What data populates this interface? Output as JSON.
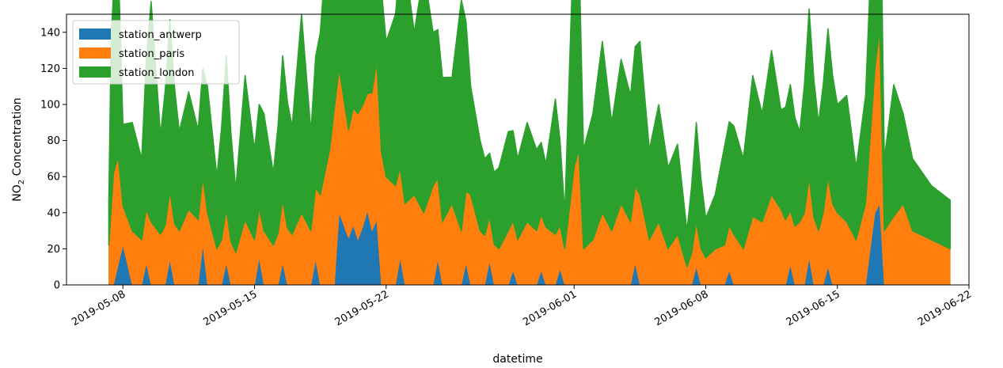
{
  "chart_data": {
    "type": "area",
    "stacked": true,
    "title": "",
    "xlabel": "datetime",
    "ylabel": "NO₂ Concentration",
    "ylabel_main": "NO",
    "ylabel_sub": "2",
    "ylabel_rest": " Concentration",
    "xlim": [
      "2019-05-05",
      "2019-06-22"
    ],
    "ylim": [
      0,
      150
    ],
    "y_ticks": [
      0,
      20,
      40,
      60,
      80,
      100,
      120,
      140
    ],
    "x_ticks": [
      "2019-05-08",
      "2019-05-15",
      "2019-05-22",
      "2019-06-01",
      "2019-06-08",
      "2019-06-15",
      "2019-06-22"
    ],
    "grid": false,
    "legend_position": "upper-left",
    "series": [
      {
        "name": "station_antwerp",
        "color": "#1f77b4",
        "points": [
          [
            "2019-05-07 06:00",
            0
          ],
          [
            "2019-05-07 12:00",
            0
          ],
          [
            "2019-05-08",
            22
          ],
          [
            "2019-05-08 12:00",
            0
          ],
          [
            "2019-05-09",
            0
          ],
          [
            "2019-05-09 06:00",
            12
          ],
          [
            "2019-05-09 12:00",
            0
          ],
          [
            "2019-05-10 06:00",
            0
          ],
          [
            "2019-05-10 12:00",
            14
          ],
          [
            "2019-05-10 18:00",
            0
          ],
          [
            "2019-05-12",
            0
          ],
          [
            "2019-05-12 06:00",
            22
          ],
          [
            "2019-05-12 12:00",
            0
          ],
          [
            "2019-05-13 06:00",
            0
          ],
          [
            "2019-05-13 12:00",
            12
          ],
          [
            "2019-05-13 18:00",
            0
          ],
          [
            "2019-05-15",
            0
          ],
          [
            "2019-05-15 06:00",
            15
          ],
          [
            "2019-05-15 12:00",
            0
          ],
          [
            "2019-05-16 06:00",
            0
          ],
          [
            "2019-05-16 12:00",
            12
          ],
          [
            "2019-05-16 18:00",
            0
          ],
          [
            "2019-05-18",
            0
          ],
          [
            "2019-05-18 06:00",
            14
          ],
          [
            "2019-05-18 12:00",
            0
          ],
          [
            "2019-05-19 06:00",
            0
          ],
          [
            "2019-05-19 12:00",
            40
          ],
          [
            "2019-05-20",
            26
          ],
          [
            "2019-05-20 06:00",
            33
          ],
          [
            "2019-05-20 12:00",
            25
          ],
          [
            "2019-05-20 18:00",
            32
          ],
          [
            "2019-05-21",
            41
          ],
          [
            "2019-05-21 06:00",
            30
          ],
          [
            "2019-05-21 12:00",
            36
          ],
          [
            "2019-05-21 18:00",
            0
          ],
          [
            "2019-05-22 12:00",
            0
          ],
          [
            "2019-05-22 18:00",
            15
          ],
          [
            "2019-05-23",
            0
          ],
          [
            "2019-05-24 12:00",
            0
          ],
          [
            "2019-05-24 18:00",
            14
          ],
          [
            "2019-05-25",
            0
          ],
          [
            "2019-05-26",
            0
          ],
          [
            "2019-05-26 06:00",
            12
          ],
          [
            "2019-05-26 12:00",
            0
          ],
          [
            "2019-05-27 06:00",
            0
          ],
          [
            "2019-05-27 12:00",
            13
          ],
          [
            "2019-05-27 18:00",
            0
          ],
          [
            "2019-05-28 12:00",
            0
          ],
          [
            "2019-05-28 18:00",
            8
          ],
          [
            "2019-05-29",
            0
          ],
          [
            "2019-05-30",
            0
          ],
          [
            "2019-05-30 06:00",
            8
          ],
          [
            "2019-05-30 12:00",
            0
          ],
          [
            "2019-05-31",
            0
          ],
          [
            "2019-05-31 06:00",
            9
          ],
          [
            "2019-05-31 12:00",
            0
          ],
          [
            "2019-06-04",
            0
          ],
          [
            "2019-06-04 06:00",
            12
          ],
          [
            "2019-06-04 12:00",
            0
          ],
          [
            "2019-06-07 06:00",
            0
          ],
          [
            "2019-06-07 12:00",
            10
          ],
          [
            "2019-06-07 18:00",
            0
          ],
          [
            "2019-06-09",
            0
          ],
          [
            "2019-06-09 06:00",
            8
          ],
          [
            "2019-06-09 12:00",
            0
          ],
          [
            "2019-06-12 06:00",
            0
          ],
          [
            "2019-06-12 12:00",
            11
          ],
          [
            "2019-06-12 18:00",
            0
          ],
          [
            "2019-06-13 06:00",
            0
          ],
          [
            "2019-06-13 12:00",
            15
          ],
          [
            "2019-06-13 18:00",
            0
          ],
          [
            "2019-06-14 06:00",
            0
          ],
          [
            "2019-06-14 12:00",
            10
          ],
          [
            "2019-06-14 18:00",
            0
          ],
          [
            "2019-06-16 12:00",
            0
          ],
          [
            "2019-06-17",
            40
          ],
          [
            "2019-06-17 06:00",
            45
          ],
          [
            "2019-06-17 12:00",
            0
          ],
          [
            "2019-06-21",
            0
          ]
        ]
      },
      {
        "name": "station_paris",
        "color": "#ff7f0e",
        "points": [
          [
            "2019-05-07 06:00",
            22
          ],
          [
            "2019-05-07 12:00",
            62
          ],
          [
            "2019-05-07 18:00",
            60
          ],
          [
            "2019-05-08",
            22
          ],
          [
            "2019-05-08 12:00",
            30
          ],
          [
            "2019-05-09",
            25
          ],
          [
            "2019-05-09 12:00",
            35
          ],
          [
            "2019-05-10",
            28
          ],
          [
            "2019-05-10 12:00",
            38
          ],
          [
            "2019-05-11",
            30
          ],
          [
            "2019-05-11 12:00",
            42
          ],
          [
            "2019-05-12",
            36
          ],
          [
            "2019-05-12 12:00",
            40
          ],
          [
            "2019-05-13",
            20
          ],
          [
            "2019-05-13 12:00",
            30
          ],
          [
            "2019-05-14",
            18
          ],
          [
            "2019-05-14 12:00",
            36
          ],
          [
            "2019-05-15",
            25
          ],
          [
            "2019-05-15 12:00",
            30
          ],
          [
            "2019-05-16",
            22
          ],
          [
            "2019-05-16 12:00",
            35
          ],
          [
            "2019-05-17",
            28
          ],
          [
            "2019-05-17 12:00",
            40
          ],
          [
            "2019-05-18",
            30
          ],
          [
            "2019-05-18 12:00",
            50
          ],
          [
            "2019-05-19",
            75
          ],
          [
            "2019-05-19 06:00",
            98
          ],
          [
            "2019-05-19 12:00",
            80
          ],
          [
            "2019-05-20",
            60
          ],
          [
            "2019-05-20 12:00",
            70
          ],
          [
            "2019-05-21",
            65
          ],
          [
            "2019-05-21 12:00",
            88
          ],
          [
            "2019-05-22",
            60
          ],
          [
            "2019-05-22 12:00",
            55
          ],
          [
            "2019-05-23",
            45
          ],
          [
            "2019-05-23 12:00",
            50
          ],
          [
            "2019-05-24",
            40
          ],
          [
            "2019-05-24 12:00",
            55
          ],
          [
            "2019-05-25",
            35
          ],
          [
            "2019-05-25 12:00",
            45
          ],
          [
            "2019-05-26",
            30
          ],
          [
            "2019-05-26 12:00",
            50
          ],
          [
            "2019-05-27",
            30
          ],
          [
            "2019-05-27 12:00",
            25
          ],
          [
            "2019-05-28",
            20
          ],
          [
            "2019-05-28 12:00",
            30
          ],
          [
            "2019-05-29",
            25
          ],
          [
            "2019-05-29 12:00",
            35
          ],
          [
            "2019-05-30",
            30
          ],
          [
            "2019-05-30 12:00",
            32
          ],
          [
            "2019-05-31",
            28
          ],
          [
            "2019-05-31 12:00",
            20
          ],
          [
            "2019-06-01",
            65
          ],
          [
            "2019-06-01 06:00",
            75
          ],
          [
            "2019-06-01 12:00",
            20
          ],
          [
            "2019-06-02",
            25
          ],
          [
            "2019-06-02 12:00",
            40
          ],
          [
            "2019-06-03",
            30
          ],
          [
            "2019-06-03 12:00",
            45
          ],
          [
            "2019-06-04",
            35
          ],
          [
            "2019-06-04 12:00",
            50
          ],
          [
            "2019-06-05",
            25
          ],
          [
            "2019-06-05 12:00",
            35
          ],
          [
            "2019-06-06",
            20
          ],
          [
            "2019-06-06 12:00",
            28
          ],
          [
            "2019-06-07",
            10
          ],
          [
            "2019-06-07 12:00",
            25
          ],
          [
            "2019-06-08",
            15
          ],
          [
            "2019-06-08 12:00",
            20
          ],
          [
            "2019-06-09",
            22
          ],
          [
            "2019-06-09 12:00",
            28
          ],
          [
            "2019-06-10",
            20
          ],
          [
            "2019-06-10 12:00",
            38
          ],
          [
            "2019-06-11",
            35
          ],
          [
            "2019-06-11 12:00",
            50
          ],
          [
            "2019-06-12",
            42
          ],
          [
            "2019-06-12 12:00",
            30
          ],
          [
            "2019-06-13",
            35
          ],
          [
            "2019-06-13 12:00",
            45
          ],
          [
            "2019-06-14",
            30
          ],
          [
            "2019-06-14 12:00",
            50
          ],
          [
            "2019-06-15",
            40
          ],
          [
            "2019-06-15 12:00",
            35
          ],
          [
            "2019-06-16",
            25
          ],
          [
            "2019-06-16 12:00",
            45
          ],
          [
            "2019-06-17",
            80
          ],
          [
            "2019-06-17 06:00",
            97
          ],
          [
            "2019-06-17 12:00",
            30
          ],
          [
            "2019-06-18",
            38
          ],
          [
            "2019-06-18 12:00",
            45
          ],
          [
            "2019-06-19",
            30
          ],
          [
            "2019-06-20",
            25
          ],
          [
            "2019-06-21",
            20
          ]
        ]
      },
      {
        "name": "station_london",
        "color": "#2ca02c",
        "points": [
          [
            "2019-05-07 06:00",
            24
          ],
          [
            "2019-05-07 09:00",
            95
          ],
          [
            "2019-05-07 18:00",
            110
          ],
          [
            "2019-05-08",
            45
          ],
          [
            "2019-05-08 12:00",
            60
          ],
          [
            "2019-05-09",
            45
          ],
          [
            "2019-05-09 12:00",
            122
          ],
          [
            "2019-05-10",
            55
          ],
          [
            "2019-05-10 12:00",
            95
          ],
          [
            "2019-05-11",
            55
          ],
          [
            "2019-05-11 12:00",
            65
          ],
          [
            "2019-05-12",
            50
          ],
          [
            "2019-05-12 12:00",
            70
          ],
          [
            "2019-05-13",
            40
          ],
          [
            "2019-05-13 12:00",
            85
          ],
          [
            "2019-05-14",
            35
          ],
          [
            "2019-05-14 12:00",
            80
          ],
          [
            "2019-05-15",
            50
          ],
          [
            "2019-05-15 12:00",
            65
          ],
          [
            "2019-05-16",
            40
          ],
          [
            "2019-05-16 12:00",
            80
          ],
          [
            "2019-05-17",
            60
          ],
          [
            "2019-05-17 12:00",
            110
          ],
          [
            "2019-05-18",
            55
          ],
          [
            "2019-05-18 12:00",
            90
          ],
          [
            "2019-05-19",
            138
          ],
          [
            "2019-05-19 06:00",
            145
          ],
          [
            "2019-05-19 12:00",
            110
          ],
          [
            "2019-05-20",
            100
          ],
          [
            "2019-05-20 12:00",
            115
          ],
          [
            "2019-05-21",
            85
          ],
          [
            "2019-05-21 12:00",
            105
          ],
          [
            "2019-05-22",
            75
          ],
          [
            "2019-05-22 12:00",
            95
          ],
          [
            "2019-05-23",
            134
          ],
          [
            "2019-05-23 12:00",
            90
          ],
          [
            "2019-05-24",
            134
          ],
          [
            "2019-05-24 12:00",
            85
          ],
          [
            "2019-05-25",
            80
          ],
          [
            "2019-05-25 12:00",
            70
          ],
          [
            "2019-05-26",
            128
          ],
          [
            "2019-05-26 12:00",
            60
          ],
          [
            "2019-05-27",
            50
          ],
          [
            "2019-05-27 12:00",
            35
          ],
          [
            "2019-05-28",
            45
          ],
          [
            "2019-05-28 12:00",
            55
          ],
          [
            "2019-05-29",
            45
          ],
          [
            "2019-05-29 12:00",
            55
          ],
          [
            "2019-05-30",
            45
          ],
          [
            "2019-05-30 12:00",
            35
          ],
          [
            "2019-05-31",
            75
          ],
          [
            "2019-05-31 12:00",
            20
          ],
          [
            "2019-06-01",
            135
          ],
          [
            "2019-06-01 03:00",
            143
          ],
          [
            "2019-06-01 12:00",
            55
          ],
          [
            "2019-06-02",
            70
          ],
          [
            "2019-06-02 12:00",
            95
          ],
          [
            "2019-06-03",
            60
          ],
          [
            "2019-06-03 12:00",
            80
          ],
          [
            "2019-06-04",
            70
          ],
          [
            "2019-06-04 12:00",
            85
          ],
          [
            "2019-06-05",
            50
          ],
          [
            "2019-06-05 12:00",
            65
          ],
          [
            "2019-06-06",
            45
          ],
          [
            "2019-06-06 12:00",
            50
          ],
          [
            "2019-06-07",
            20
          ],
          [
            "2019-06-07 12:00",
            55
          ],
          [
            "2019-06-08",
            22
          ],
          [
            "2019-06-08 12:00",
            30
          ],
          [
            "2019-06-09",
            55
          ],
          [
            "2019-06-09 12:00",
            60
          ],
          [
            "2019-06-10",
            50
          ],
          [
            "2019-06-10 12:00",
            78
          ],
          [
            "2019-06-11",
            60
          ],
          [
            "2019-06-11 12:00",
            80
          ],
          [
            "2019-06-12",
            55
          ],
          [
            "2019-06-12 12:00",
            70
          ],
          [
            "2019-06-13",
            50
          ],
          [
            "2019-06-13 12:00",
            93
          ],
          [
            "2019-06-14",
            60
          ],
          [
            "2019-06-14 12:00",
            82
          ],
          [
            "2019-06-15",
            60
          ],
          [
            "2019-06-15 12:00",
            70
          ],
          [
            "2019-06-16",
            40
          ],
          [
            "2019-06-16 12:00",
            60
          ],
          [
            "2019-06-17",
            115
          ],
          [
            "2019-06-17 06:00",
            112
          ],
          [
            "2019-06-17 12:00",
            40
          ],
          [
            "2019-06-18",
            73
          ],
          [
            "2019-06-18 12:00",
            50
          ],
          [
            "2019-06-19",
            40
          ],
          [
            "2019-06-20",
            30
          ],
          [
            "2019-06-21",
            27
          ]
        ]
      }
    ]
  }
}
